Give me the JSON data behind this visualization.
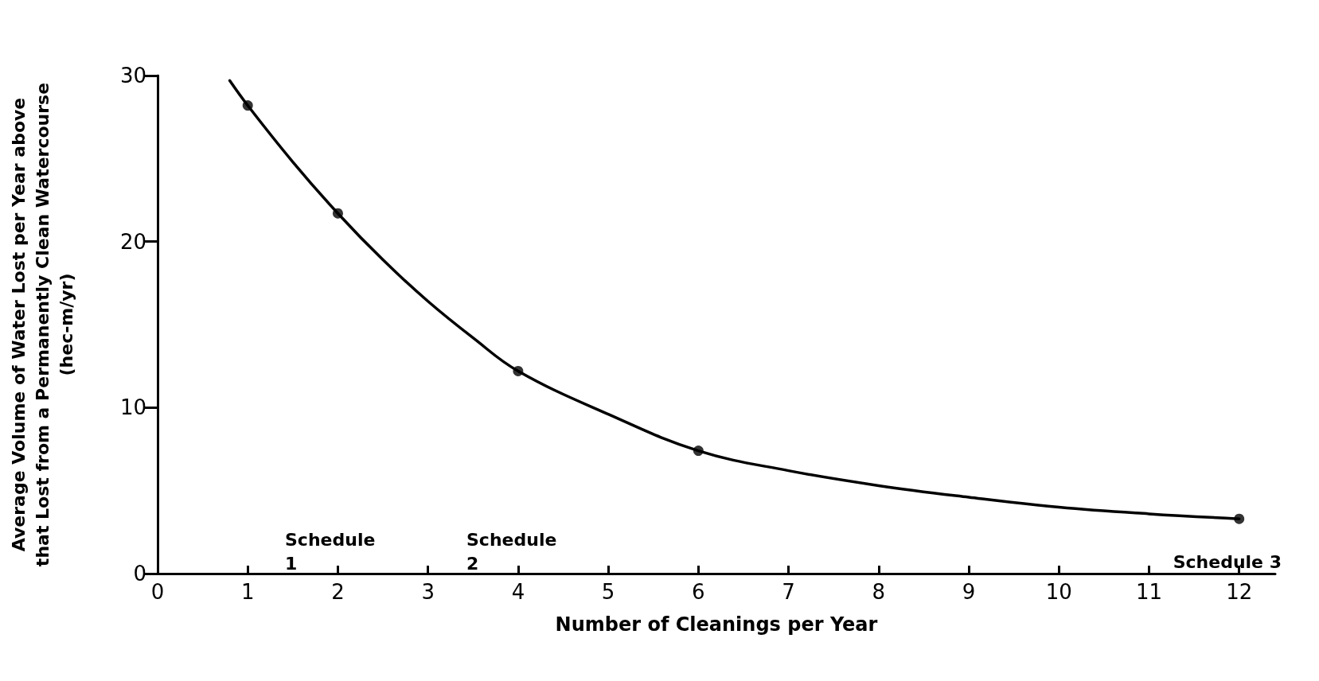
{
  "chart_data": {
    "type": "line",
    "xlabel": "Number of Cleanings per Year",
    "ylabel": "Average Volume of Water Lost per Year above\nthat Lost from a Permanently Clean Watercourse\n(hec-m/yr)",
    "xlim": [
      0,
      12.4
    ],
    "xticks": [
      0,
      1,
      2,
      3,
      4,
      5,
      6,
      7,
      8,
      9,
      10,
      11,
      12
    ],
    "ylim": [
      0,
      30
    ],
    "yticks": [
      0,
      10,
      20,
      30
    ],
    "grid": false,
    "series": [
      {
        "type": "line",
        "marker": "none",
        "color": "#000000",
        "x": [
          0.8,
          1,
          1.5,
          2,
          2.5,
          3,
          3.5,
          4,
          5,
          6,
          7,
          8,
          9,
          10,
          11,
          12
        ],
        "values": [
          29.7,
          28.2,
          24.8,
          21.7,
          18.9,
          16.4,
          14.2,
          12.2,
          9.6,
          7.4,
          6.2,
          5.3,
          4.6,
          4.0,
          3.6,
          3.3
        ]
      },
      {
        "type": "scatter",
        "marker": "circle",
        "color": "#000000",
        "x": [
          1,
          2,
          4,
          6,
          12
        ],
        "values": [
          28.2,
          21.7,
          12.2,
          7.4,
          3.3
        ]
      }
    ],
    "annotations": [
      "Schedule\n1",
      "Schedule\n2",
      "Schedule 3"
    ]
  }
}
